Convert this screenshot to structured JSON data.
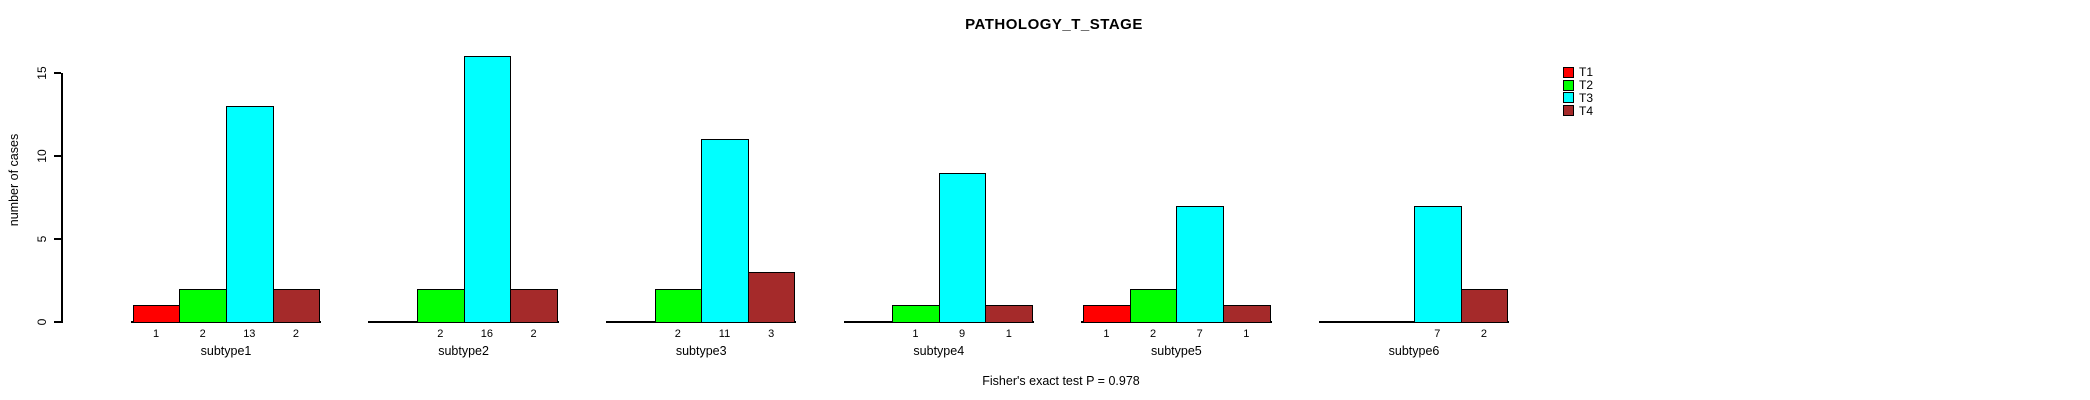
{
  "title": "PATHOLOGY_T_STAGE",
  "annotation": "Fisher's exact test P = 0.978",
  "y_axis": {
    "label": "number of cases",
    "ticks": [
      0,
      5,
      10,
      15
    ]
  },
  "legend": {
    "position": "top-right",
    "entries": [
      {
        "label": "T1",
        "color": "#FF0000"
      },
      {
        "label": "T2",
        "color": "#00FF00"
      },
      {
        "label": "T3",
        "color": "#00FFFF"
      },
      {
        "label": "T4",
        "color": "#A52A2A"
      }
    ]
  },
  "chart_data": {
    "type": "bar",
    "grouped": true,
    "title": "PATHOLOGY_T_STAGE",
    "xlabel": "",
    "ylabel": "number of cases",
    "ylim": [
      0,
      16
    ],
    "y_ticks": [
      0,
      5,
      10,
      15
    ],
    "grid": false,
    "legend_position": "top-right",
    "categories": [
      "subtype1",
      "subtype2",
      "subtype3",
      "subtype4",
      "subtype5",
      "subtype6"
    ],
    "series": [
      {
        "name": "T1",
        "color": "#FF0000",
        "values": [
          1,
          0,
          0,
          0,
          1,
          0
        ]
      },
      {
        "name": "T2",
        "color": "#00FF00",
        "values": [
          2,
          2,
          2,
          1,
          2,
          0
        ]
      },
      {
        "name": "T3",
        "color": "#00FFFF",
        "values": [
          13,
          16,
          11,
          9,
          7,
          7
        ]
      },
      {
        "name": "T4",
        "color": "#A52A2A",
        "values": [
          2,
          2,
          3,
          1,
          1,
          2
        ]
      }
    ],
    "bar_value_labels": "counts shown under each bar; zero-count bars have no bar and no label",
    "annotation": "Fisher's exact test P = 0.978"
  }
}
